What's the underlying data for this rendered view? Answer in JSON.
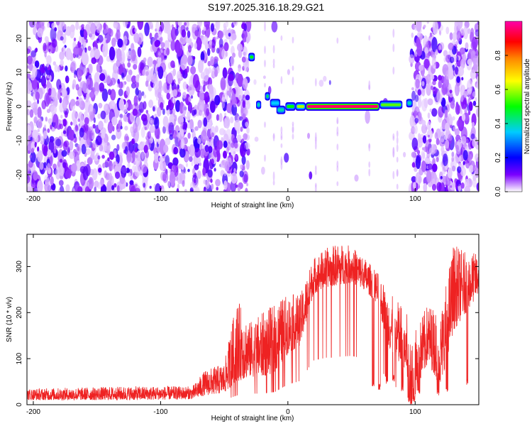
{
  "title": "S197.2025.316.18.29.G21",
  "chart_data": [
    {
      "type": "heatmap",
      "xlabel": "Height of straight line (km)",
      "ylabel": "Frequency (Hz)",
      "xlim": [
        -205,
        150
      ],
      "ylim": [
        -25,
        25
      ],
      "xticks": [
        -200,
        -100,
        0,
        100
      ],
      "yticks": [
        -20,
        -10,
        0,
        10,
        20
      ],
      "colorbar": {
        "label": "Normalized spectral amplitude",
        "range": [
          0,
          1
        ],
        "ticks": [
          "0.0",
          "0.2",
          "0.4",
          "0.6",
          "0.8"
        ],
        "colors": [
          "#ffffff",
          "#9933ff",
          "#0000ff",
          "#00ffff",
          "#00ff00",
          "#ffff00",
          "#ff8000",
          "#ff0000",
          "#ff00aa"
        ]
      },
      "signal_segments": [
        {
          "x_start": -31,
          "x_end": -26,
          "freq": 14.5,
          "amplitude": 0.5
        },
        {
          "x_start": -25,
          "x_end": -21,
          "freq": 0.5,
          "amplitude": 0.4
        },
        {
          "x_start": -18,
          "x_end": -14,
          "freq": 3,
          "amplitude": 0.45
        },
        {
          "x_start": -14,
          "x_end": -6,
          "freq": 1,
          "amplitude": 0.35
        },
        {
          "x_start": -9,
          "x_end": -2,
          "freq": -1,
          "amplitude": 0.4
        },
        {
          "x_start": -2,
          "x_end": 6,
          "freq": 0,
          "amplitude": 0.5
        },
        {
          "x_start": 6,
          "x_end": 14,
          "freq": 0,
          "amplitude": 0.6
        },
        {
          "x_start": 14,
          "x_end": 72,
          "freq": 0,
          "amplitude": 0.95
        },
        {
          "x_start": 72,
          "x_end": 90,
          "freq": 0.5,
          "amplitude": 0.55
        },
        {
          "x_start": 93,
          "x_end": 98,
          "freq": 1,
          "amplitude": 0.4
        }
      ],
      "blank_region": [
        -31,
        97
      ]
    },
    {
      "type": "line",
      "xlabel": "Height of straight line (km)",
      "ylabel": "SNR (10 * v/v)",
      "xlim": [
        -205,
        150
      ],
      "ylim": [
        0,
        370
      ],
      "xticks": [
        -200,
        -100,
        0,
        100
      ],
      "yticks": [
        0,
        100,
        200,
        300
      ],
      "color": "#ee2222",
      "envelope": {
        "x": [
          -205,
          -120,
          -75,
          -65,
          -50,
          -40,
          -30,
          -20,
          -10,
          0,
          10,
          20,
          30,
          40,
          50,
          60,
          70,
          80,
          90,
          100,
          110,
          120,
          130,
          140,
          150
        ],
        "base": [
          10,
          10,
          12,
          20,
          25,
          50,
          60,
          60,
          70,
          110,
          130,
          240,
          255,
          260,
          265,
          250,
          220,
          120,
          70,
          20,
          90,
          40,
          160,
          200,
          240
        ],
        "peak": [
          35,
          40,
          40,
          75,
          90,
          230,
          180,
          200,
          220,
          240,
          240,
          320,
          340,
          350,
          345,
          320,
          290,
          240,
          220,
          160,
          220,
          200,
          350,
          330,
          330
        ]
      },
      "deep_dips": [
        {
          "x": 67,
          "min": 40
        },
        {
          "x": 72,
          "min": 30
        },
        {
          "x": 78,
          "min": 40
        },
        {
          "x": 83,
          "min": 50
        },
        {
          "x": 90,
          "min": 30
        },
        {
          "x": 95,
          "min": 5
        },
        {
          "x": 97,
          "min": 0
        },
        {
          "x": 99,
          "min": 5
        },
        {
          "x": 103,
          "min": 20
        },
        {
          "x": 118,
          "min": 20
        },
        {
          "x": 125,
          "min": 25
        },
        {
          "x": 141,
          "min": 40
        }
      ]
    }
  ]
}
